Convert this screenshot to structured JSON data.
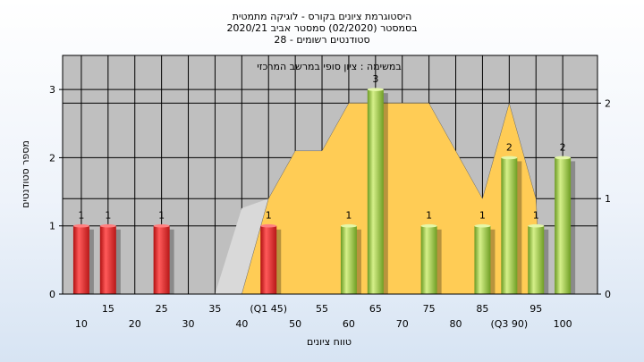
{
  "chart_data": {
    "type": "bar",
    "title_lines": [
      "היסטוגרמת ציונים בקורס - לוגיקה מתמטית",
      "בסמסטר  (02/2020)  סמסטר אביב 2020/21",
      "סטודנטים רשומים - 28"
    ],
    "subtitle": "במשימה : ציון סופי במרשב המרכזי",
    "xlabel": "טווח ציונים",
    "ylabel": "מספר סטודנטים",
    "ylim": [
      0,
      3.5
    ],
    "y_ticks": [
      "0",
      "1",
      "2",
      "3"
    ],
    "y2lim": [
      0,
      2.5
    ],
    "y2_ticks": [
      "0",
      "1",
      "2"
    ],
    "x_ticks_upper": [
      {
        "x": 15,
        "label": "15"
      },
      {
        "x": 25,
        "label": "25"
      },
      {
        "x": 35,
        "label": "35"
      },
      {
        "x": 45,
        "label": "(Q1 45)"
      },
      {
        "x": 55,
        "label": "55"
      },
      {
        "x": 65,
        "label": "65"
      },
      {
        "x": 75,
        "label": "75"
      },
      {
        "x": 85,
        "label": "85"
      },
      {
        "x": 95,
        "label": "95"
      }
    ],
    "x_ticks_lower": [
      {
        "x": 10,
        "label": "10"
      },
      {
        "x": 20,
        "label": "20"
      },
      {
        "x": 30,
        "label": "30"
      },
      {
        "x": 40,
        "label": "40"
      },
      {
        "x": 50,
        "label": "50"
      },
      {
        "x": 60,
        "label": "60"
      },
      {
        "x": 70,
        "label": "70"
      },
      {
        "x": 80,
        "label": "80"
      },
      {
        "x": 90,
        "label": "(Q3 90)"
      },
      {
        "x": 100,
        "label": "100"
      }
    ],
    "bars": [
      {
        "x": 10,
        "value": 1,
        "label": "1",
        "color": "red"
      },
      {
        "x": 15,
        "value": 1,
        "label": "1",
        "color": "red"
      },
      {
        "x": 25,
        "value": 1,
        "label": "1",
        "color": "red"
      },
      {
        "x": 45,
        "value": 1,
        "label": "1",
        "color": "red"
      },
      {
        "x": 60,
        "value": 1,
        "label": "1",
        "color": "green"
      },
      {
        "x": 65,
        "value": 3,
        "label": "3",
        "color": "green"
      },
      {
        "x": 75,
        "value": 1,
        "label": "1",
        "color": "green"
      },
      {
        "x": 85,
        "value": 1,
        "label": "1",
        "color": "green"
      },
      {
        "x": 90,
        "value": 2,
        "label": "2",
        "color": "green"
      },
      {
        "x": 95,
        "value": 1,
        "label": "1",
        "color": "green"
      },
      {
        "x": 100,
        "value": 2,
        "label": "2",
        "color": "green"
      }
    ],
    "area": [
      [
        40,
        0
      ],
      [
        41,
        0.2
      ],
      [
        45,
        1
      ],
      [
        50,
        1.5
      ],
      [
        55,
        1.5
      ],
      [
        60,
        2
      ],
      [
        70,
        2
      ],
      [
        75,
        2
      ],
      [
        85,
        1
      ],
      [
        90,
        2
      ],
      [
        95,
        1
      ],
      [
        96,
        0
      ],
      [
        40,
        0
      ]
    ],
    "area_grey": [
      [
        35,
        0
      ],
      [
        40,
        0.9
      ],
      [
        45,
        1
      ],
      [
        45,
        0
      ],
      [
        35,
        0
      ]
    ],
    "colors": {
      "plot_bg": "#bfbfbf",
      "area": "#ffcc55",
      "area_grey": "#d9d9d9",
      "bar_red": "#e02020",
      "bar_green": "#8fc23a"
    }
  }
}
